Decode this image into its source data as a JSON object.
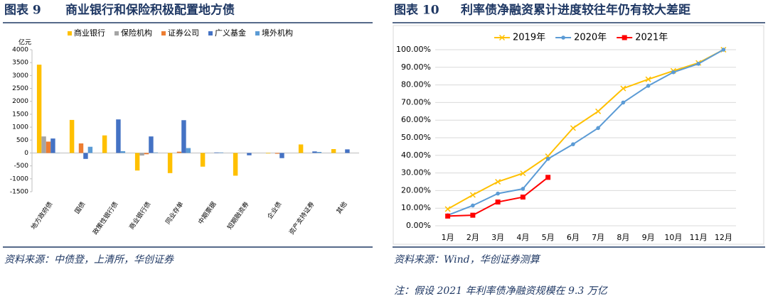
{
  "figures": [
    {
      "label": "图表 9",
      "title": "商业银行和保险积极配置地方债",
      "source": "资料来源：中债登，上清所，华创证券"
    },
    {
      "label": "图表 10",
      "title": "利率债净融资累计进度较往年仍有较大差距",
      "source": "资料来源：Wind，华创证券测算"
    }
  ],
  "note": "注：假设 2021 年利率债净融资规模在 9.3 万亿",
  "chart_data": [
    {
      "type": "bar",
      "y_unit": "亿元",
      "categories": [
        "地方政府债",
        "国债",
        "政策性银行债",
        "商业银行债",
        "同业存单",
        "中期票据",
        "短期融资券",
        "企业债",
        "资产支持证券",
        "其他"
      ],
      "series": [
        {
          "name": "商业银行",
          "color": "#ffc000",
          "values": [
            3420,
            1280,
            680,
            -680,
            -780,
            -530,
            -880,
            -20,
            330,
            150
          ]
        },
        {
          "name": "保险机构",
          "color": "#a5a5a5",
          "values": [
            640,
            0,
            0,
            -100,
            0,
            0,
            0,
            0,
            0,
            0
          ]
        },
        {
          "name": "证券公司",
          "color": "#ed7d31",
          "values": [
            440,
            370,
            0,
            -50,
            50,
            0,
            0,
            -30,
            0,
            0
          ]
        },
        {
          "name": "广义基金",
          "color": "#4472c4",
          "values": [
            560,
            -230,
            1300,
            640,
            1270,
            20,
            -90,
            -200,
            60,
            140
          ]
        },
        {
          "name": "境外机构",
          "color": "#5b9bd5",
          "values": [
            10,
            240,
            70,
            20,
            190,
            20,
            0,
            0,
            40,
            0
          ]
        }
      ],
      "ylim": [
        -1500,
        4000
      ],
      "yticks": [
        -1500,
        -1000,
        -500,
        0,
        500,
        1000,
        1500,
        2000,
        2500,
        3000,
        3500,
        4000
      ],
      "grid": false
    },
    {
      "type": "line",
      "categories": [
        "1月",
        "2月",
        "3月",
        "4月",
        "5月",
        "6月",
        "7月",
        "8月",
        "9月",
        "10月",
        "11月",
        "12月"
      ],
      "series": [
        {
          "name": "2019年",
          "color": "#ffc000",
          "marker": "x",
          "values": [
            9.5,
            17.5,
            25,
            29.8,
            39.5,
            55.5,
            65,
            78,
            83.2,
            88,
            92.5,
            100
          ]
        },
        {
          "name": "2020年",
          "color": "#5b9bd5",
          "marker": "circle",
          "values": [
            6,
            11.5,
            18.3,
            21,
            38,
            46.3,
            55.5,
            70,
            79.5,
            87.2,
            92,
            100
          ]
        },
        {
          "name": "2021年",
          "color": "#ff0000",
          "marker": "square",
          "values": [
            5.5,
            6,
            13.5,
            16.3,
            27.5,
            null,
            null,
            null,
            null,
            null,
            null,
            null
          ]
        }
      ],
      "ylim": [
        0,
        100
      ],
      "yticks": [
        {
          "value": 0,
          "label": "0.00%"
        },
        {
          "value": 10,
          "label": "10.00%"
        },
        {
          "value": 20,
          "label": "20.00%"
        },
        {
          "value": 30,
          "label": "30.00%"
        },
        {
          "value": 40,
          "label": "40.00%"
        },
        {
          "value": 50,
          "label": "50.00%"
        },
        {
          "value": 60,
          "label": "60.00%"
        },
        {
          "value": 70,
          "label": "70.00%"
        },
        {
          "value": 80,
          "label": "80.00%"
        },
        {
          "value": 90,
          "label": "90.00%"
        },
        {
          "value": 100,
          "label": "100.00%"
        }
      ],
      "grid": true
    }
  ]
}
